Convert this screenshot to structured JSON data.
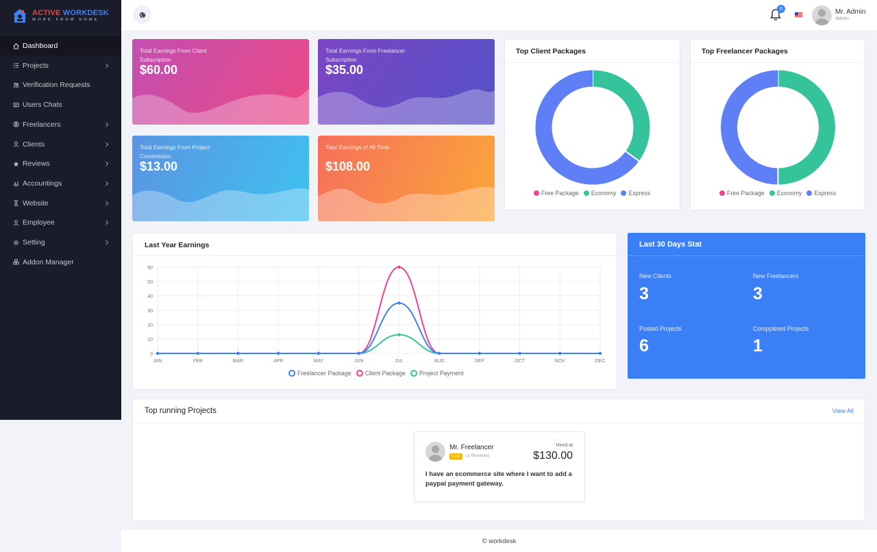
{
  "brand": {
    "name_part1": "ACTIVE",
    "name_part2": "WORKDESK",
    "tagline": "WORK FROM HOME"
  },
  "sidebar": {
    "items": [
      {
        "label": "Dashboard",
        "icon": "home-icon",
        "active": true,
        "has_submenu": false
      },
      {
        "label": "Projects",
        "icon": "list-icon",
        "has_submenu": true
      },
      {
        "label": "Verification Requests",
        "icon": "users-icon",
        "has_submenu": false
      },
      {
        "label": "Users Chats",
        "icon": "chat-icon",
        "has_submenu": false
      },
      {
        "label": "Freelancers",
        "icon": "freelancer-icon",
        "has_submenu": true
      },
      {
        "label": "Clients",
        "icon": "user-icon",
        "has_submenu": true
      },
      {
        "label": "Reviews",
        "icon": "star-icon",
        "has_submenu": true
      },
      {
        "label": "Accountings",
        "icon": "bar-chart-icon",
        "has_submenu": true
      },
      {
        "label": "Website",
        "icon": "hourglass-icon",
        "has_submenu": true
      },
      {
        "label": "Employee",
        "icon": "user-icon",
        "has_submenu": true
      },
      {
        "label": "Setting",
        "icon": "gear-icon",
        "has_submenu": true
      },
      {
        "label": "Addon Manager",
        "icon": "boxes-icon",
        "has_submenu": false
      }
    ]
  },
  "topbar": {
    "notification_count": "0",
    "user_name": "Mr. Admin",
    "user_role": "Admin",
    "accent": "#3b82f6"
  },
  "earnings": [
    {
      "label": "Total Earnings From Client Subscription",
      "value": "$60.00"
    },
    {
      "label": "Total Earnings From Freelancer Subscription",
      "value": "$35.00"
    },
    {
      "label": "Total Earnings From Project Commission",
      "value": "$13.00"
    },
    {
      "label": "Total Earnings of All Time",
      "value": "$108.00"
    }
  ],
  "client_packages": {
    "title": "Top Client Packages"
  },
  "freelancer_packages": {
    "title": "Top Freelancer Packages"
  },
  "last_year": {
    "title": "Last Year Earnings"
  },
  "stat": {
    "title": "Last 30 Days Stat",
    "items": [
      {
        "label": "New Clients",
        "value": "3"
      },
      {
        "label": "New Freelancers",
        "value": "3"
      },
      {
        "label": "Posted Projects",
        "value": "6"
      },
      {
        "label": "Comppleted Projects",
        "value": "1"
      }
    ]
  },
  "running": {
    "title": "Top running Projects",
    "view_all": "View All",
    "project": {
      "freelancer": "Mr. Freelancer",
      "rating": "5.00",
      "reviews": "(1 Reviews)",
      "hired_label": "Hired at",
      "amount": "$130.00",
      "description": "I have an ecommerce site where I want to add a paypal payment gateway."
    }
  },
  "footer": {
    "text": "© workdesk"
  },
  "chart_data": [
    {
      "type": "pie",
      "title": "Top Client Packages",
      "labels": [
        "Free Package",
        "Economy",
        "Express"
      ],
      "values": [
        0,
        35,
        65
      ],
      "colors": [
        "#f0458f",
        "#34c39b",
        "#5e7ff5"
      ],
      "legend": "bottom"
    },
    {
      "type": "pie",
      "title": "Top Freelancer Packages",
      "labels": [
        "Free Package",
        "Economy",
        "Express"
      ],
      "values": [
        0,
        50,
        50
      ],
      "colors": [
        "#f0458f",
        "#34c39b",
        "#5e7ff5"
      ],
      "legend": "bottom"
    },
    {
      "type": "line",
      "title": "Last Year Earnings",
      "categories": [
        "JAN",
        "FEB",
        "MAR",
        "APR",
        "MAY",
        "JUN",
        "JUL",
        "AUG",
        "SEP",
        "OCT",
        "NOV",
        "DEC"
      ],
      "series": [
        {
          "name": "Freelancer Package",
          "color": "#3b82f6",
          "values": [
            0,
            0,
            0,
            0,
            0,
            0,
            35,
            0,
            0,
            0,
            0,
            0
          ]
        },
        {
          "name": "Client Package",
          "color": "#ef3f8f",
          "values": [
            0,
            0,
            0,
            0,
            0,
            0,
            60,
            0,
            0,
            0,
            0,
            0
          ]
        },
        {
          "name": "Project Payment",
          "color": "#34c39b",
          "values": [
            0,
            0,
            0,
            0,
            0,
            0,
            13,
            0,
            0,
            0,
            0,
            0
          ]
        }
      ],
      "yticks": [
        0,
        10,
        20,
        30,
        40,
        50,
        60
      ],
      "ylim": [
        0,
        60
      ],
      "grid": true,
      "legend": "bottom"
    }
  ]
}
